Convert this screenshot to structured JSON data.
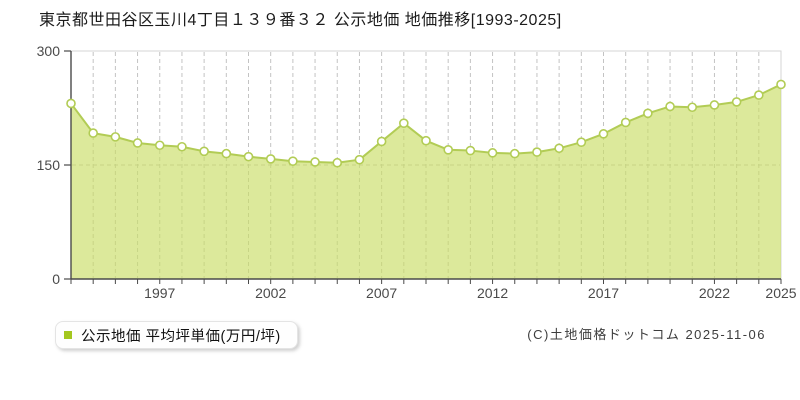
{
  "title": "東京都世田谷区玉川4丁目１３９番３２ 公示地価 地価推移[1993-2025]",
  "legend": {
    "label": "公示地価 平均坪単価(万円/坪)",
    "marker_color": "#a4c71f"
  },
  "copyright": "(C)土地価格ドットコム 2025-11-06",
  "chart_data": {
    "type": "area",
    "title": "東京都世田谷区玉川4丁目１３９番３２ 公示地価 地価推移[1993-2025]",
    "x": [
      1993,
      1994,
      1995,
      1996,
      1997,
      1998,
      1999,
      2000,
      2001,
      2002,
      2003,
      2004,
      2005,
      2006,
      2007,
      2008,
      2009,
      2010,
      2011,
      2012,
      2013,
      2014,
      2015,
      2016,
      2017,
      2018,
      2019,
      2020,
      2021,
      2022,
      2023,
      2024,
      2025
    ],
    "series": [
      {
        "name": "公示地価 平均坪単価(万円/坪)",
        "values": [
          231,
          192,
          187,
          179,
          176,
          174,
          168,
          165,
          161,
          158,
          155,
          154,
          153,
          157,
          181,
          205,
          182,
          170,
          169,
          166,
          165,
          167,
          172,
          180,
          191,
          206,
          218,
          227,
          226,
          229,
          233,
          242,
          256
        ]
      }
    ],
    "xlabel": "",
    "ylabel": "平均坪単価(万円/坪)",
    "ylim": [
      0,
      300
    ],
    "yticks": [
      0,
      150,
      300
    ],
    "xtick_labels": [
      "1997",
      "2002",
      "2007",
      "2012",
      "2017",
      "2022",
      "2025"
    ],
    "grid": {
      "vertical": "dashed line at every year",
      "horizontal_lines": [
        150
      ],
      "style": "dashed"
    },
    "legend_position": "bottom-left",
    "colors": {
      "line": "#b2cc55",
      "fill": "#c9dd66",
      "fill_opacity": 0.65,
      "marker_fill": "#ffffff",
      "marker_stroke": "#b2cc55",
      "grid": "#c3c3c3",
      "axis": "#4a4a4a",
      "plot_border": "#d6d6d6",
      "tick_label": "#4a4a4a"
    }
  }
}
